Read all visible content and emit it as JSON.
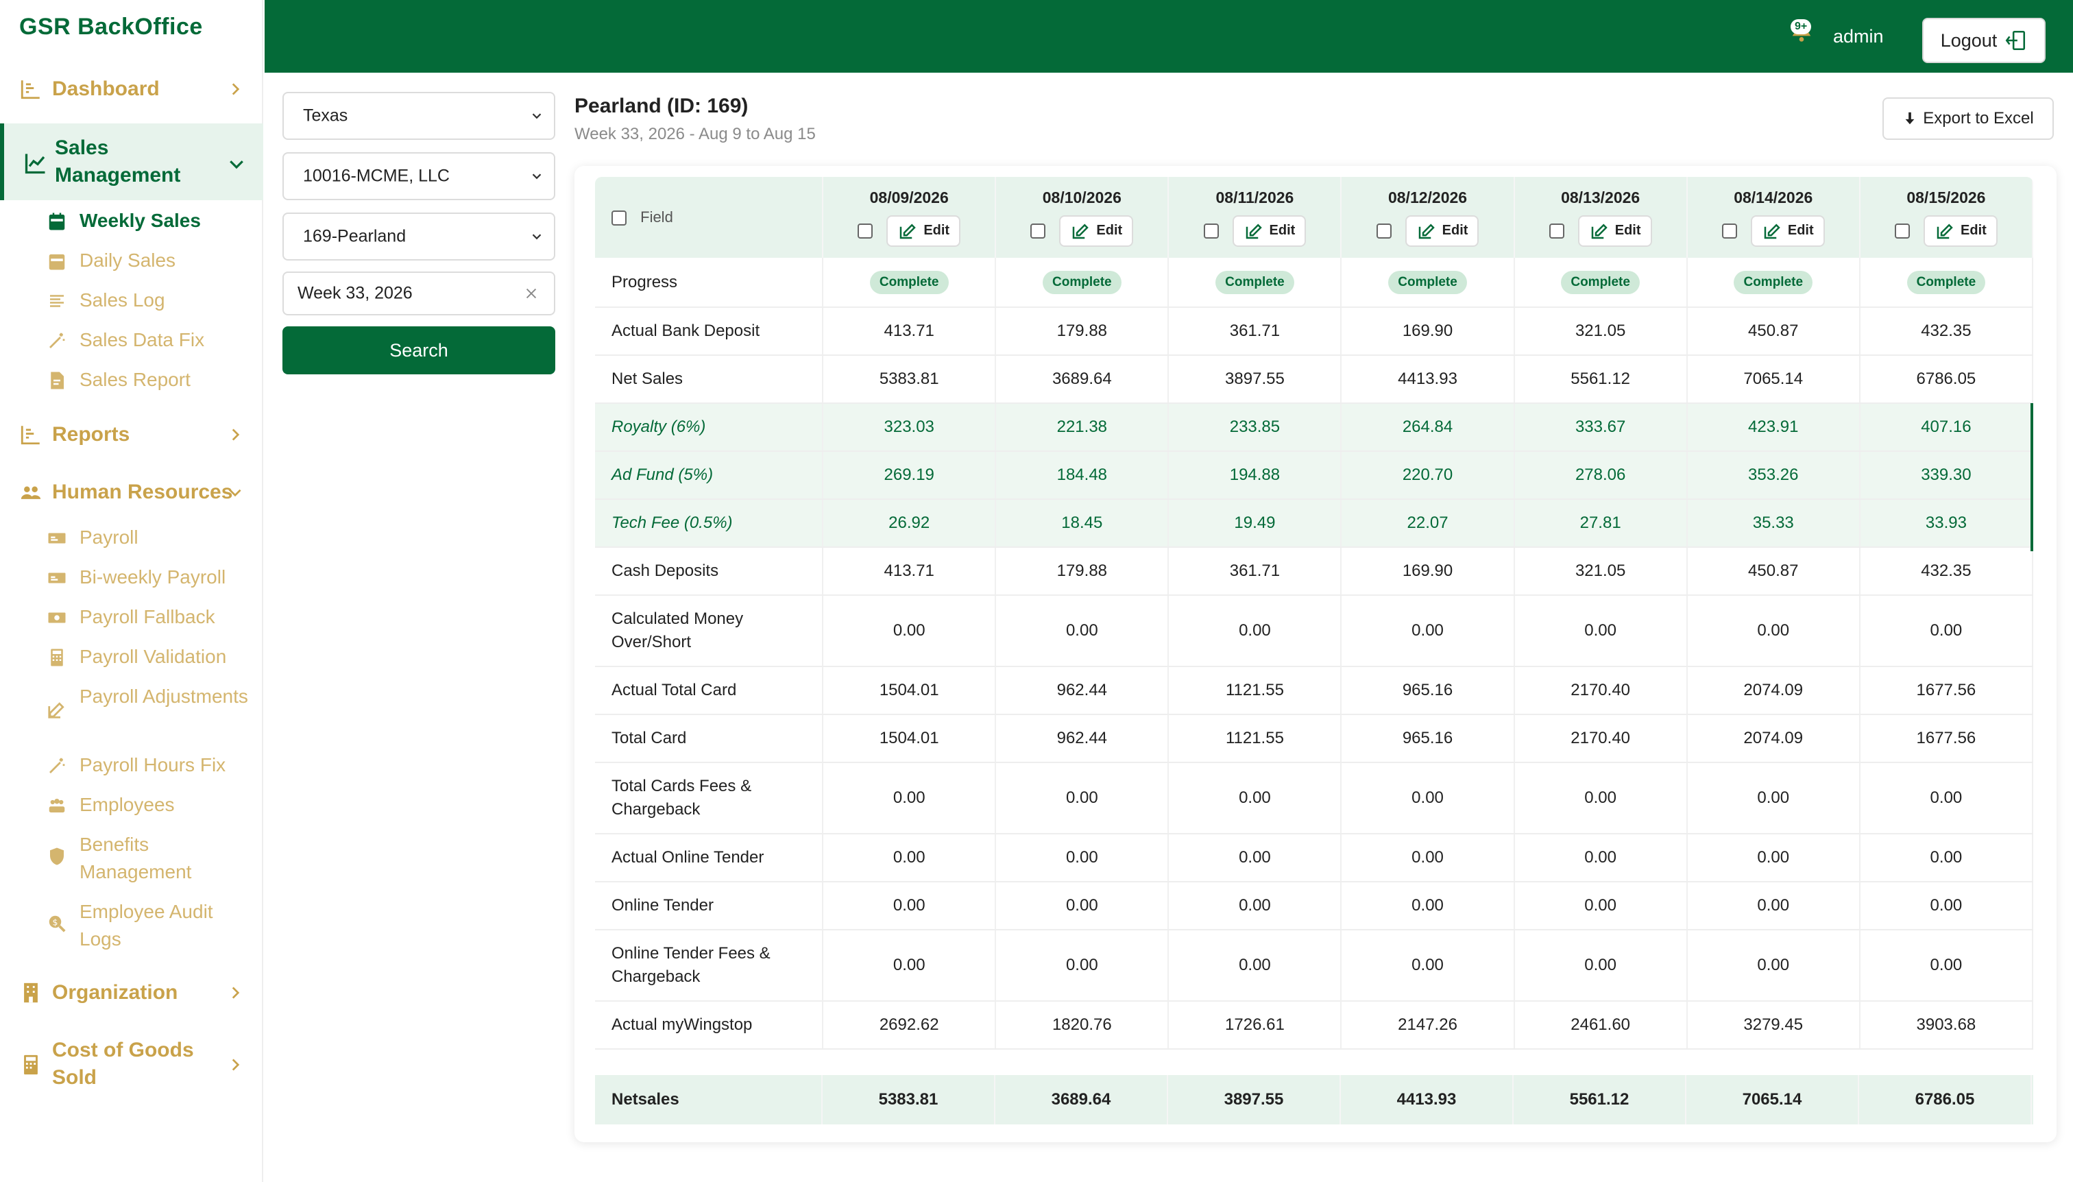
{
  "app": {
    "title": "GSR BackOffice"
  },
  "colors": {
    "brand": "#046a38",
    "nav_inactive": "#c9a24a",
    "row_highlight": "#eef7f1"
  },
  "sidebar": {
    "dashboard": "Dashboard",
    "sales_management": "Sales Management",
    "sales_items": [
      {
        "label": "Weekly Sales",
        "icon": "calendar-icon"
      },
      {
        "label": "Daily Sales",
        "icon": "calendar-icon"
      },
      {
        "label": "Sales Log",
        "icon": "list-icon"
      },
      {
        "label": "Sales Data Fix",
        "icon": "wand-icon"
      },
      {
        "label": "Sales Report",
        "icon": "report-icon"
      }
    ],
    "reports": "Reports",
    "human_resources": "Human Resources",
    "hr_items": [
      {
        "label": "Payroll",
        "icon": "money-icon"
      },
      {
        "label": "Bi-weekly Payroll",
        "icon": "money-icon"
      },
      {
        "label": "Payroll Fallback",
        "icon": "cash-icon"
      },
      {
        "label": "Payroll Validation",
        "icon": "calculator-icon"
      },
      {
        "label": "Payroll Adjustments",
        "icon": "edit-icon"
      },
      {
        "label": "Payroll Hours Fix",
        "icon": "wand-icon"
      },
      {
        "label": "Employees",
        "icon": "people-icon"
      },
      {
        "label": "Benefits Management",
        "icon": "shield-icon"
      },
      {
        "label": "Employee Audit Logs",
        "icon": "audit-icon"
      }
    ],
    "organization": "Organization",
    "cost_of_goods": "Cost of Goods Sold"
  },
  "topbar": {
    "notification_badge": "9+",
    "user": "admin",
    "logout": "Logout"
  },
  "filters": {
    "state": "Texas",
    "company": "10016-MCME, LLC",
    "store": "169-Pearland",
    "week": "Week 33, 2026",
    "search": "Search"
  },
  "header": {
    "title": "Pearland (ID: 169)",
    "subtitle": "Week 33, 2026 - Aug 9 to Aug 15",
    "export": "Export to Excel"
  },
  "table": {
    "field_header": "Field",
    "edit_label": "Edit",
    "dates": [
      "08/09/2026",
      "08/10/2026",
      "08/11/2026",
      "08/12/2026",
      "08/13/2026",
      "08/14/2026",
      "08/15/2026"
    ],
    "progress": {
      "label": "Progress",
      "values": [
        "Complete",
        "Complete",
        "Complete",
        "Complete",
        "Complete",
        "Complete",
        "Complete"
      ]
    },
    "rows": [
      {
        "label": "Actual Bank Deposit",
        "values": [
          "413.71",
          "179.88",
          "361.71",
          "169.90",
          "321.05",
          "450.87",
          "432.35"
        ]
      },
      {
        "label": "Net Sales",
        "values": [
          "5383.81",
          "3689.64",
          "3897.55",
          "4413.93",
          "5561.12",
          "7065.14",
          "6786.05"
        ]
      },
      {
        "label": "Royalty (6%)",
        "values": [
          "323.03",
          "221.38",
          "233.85",
          "264.84",
          "333.67",
          "423.91",
          "407.16"
        ]
      },
      {
        "label": "Ad Fund (5%)",
        "values": [
          "269.19",
          "184.48",
          "194.88",
          "220.70",
          "278.06",
          "353.26",
          "339.30"
        ]
      },
      {
        "label": "Tech Fee (0.5%)",
        "values": [
          "26.92",
          "18.45",
          "19.49",
          "22.07",
          "27.81",
          "35.33",
          "33.93"
        ]
      },
      {
        "label": "Cash Deposits",
        "values": [
          "413.71",
          "179.88",
          "361.71",
          "169.90",
          "321.05",
          "450.87",
          "432.35"
        ]
      },
      {
        "label": "Calculated Money Over/Short",
        "values": [
          "0.00",
          "0.00",
          "0.00",
          "0.00",
          "0.00",
          "0.00",
          "0.00"
        ]
      },
      {
        "label": "Actual Total Card",
        "values": [
          "1504.01",
          "962.44",
          "1121.55",
          "965.16",
          "2170.40",
          "2074.09",
          "1677.56"
        ]
      },
      {
        "label": "Total Card",
        "values": [
          "1504.01",
          "962.44",
          "1121.55",
          "965.16",
          "2170.40",
          "2074.09",
          "1677.56"
        ]
      },
      {
        "label": "Total Cards Fees & Chargeback",
        "values": [
          "0.00",
          "0.00",
          "0.00",
          "0.00",
          "0.00",
          "0.00",
          "0.00"
        ]
      },
      {
        "label": "Actual Online Tender",
        "values": [
          "0.00",
          "0.00",
          "0.00",
          "0.00",
          "0.00",
          "0.00",
          "0.00"
        ]
      },
      {
        "label": "Online Tender",
        "values": [
          "0.00",
          "0.00",
          "0.00",
          "0.00",
          "0.00",
          "0.00",
          "0.00"
        ]
      },
      {
        "label": "Online Tender Fees & Chargeback",
        "values": [
          "0.00",
          "0.00",
          "0.00",
          "0.00",
          "0.00",
          "0.00",
          "0.00"
        ]
      },
      {
        "label": "Actual myWingstop",
        "values": [
          "2692.62",
          "1820.76",
          "1726.61",
          "2147.26",
          "2461.60",
          "3279.45",
          "3903.68"
        ]
      }
    ],
    "footer": {
      "label": "Netsales",
      "values": [
        "5383.81",
        "3689.64",
        "3897.55",
        "4413.93",
        "5561.12",
        "7065.14",
        "6786.05"
      ]
    }
  }
}
